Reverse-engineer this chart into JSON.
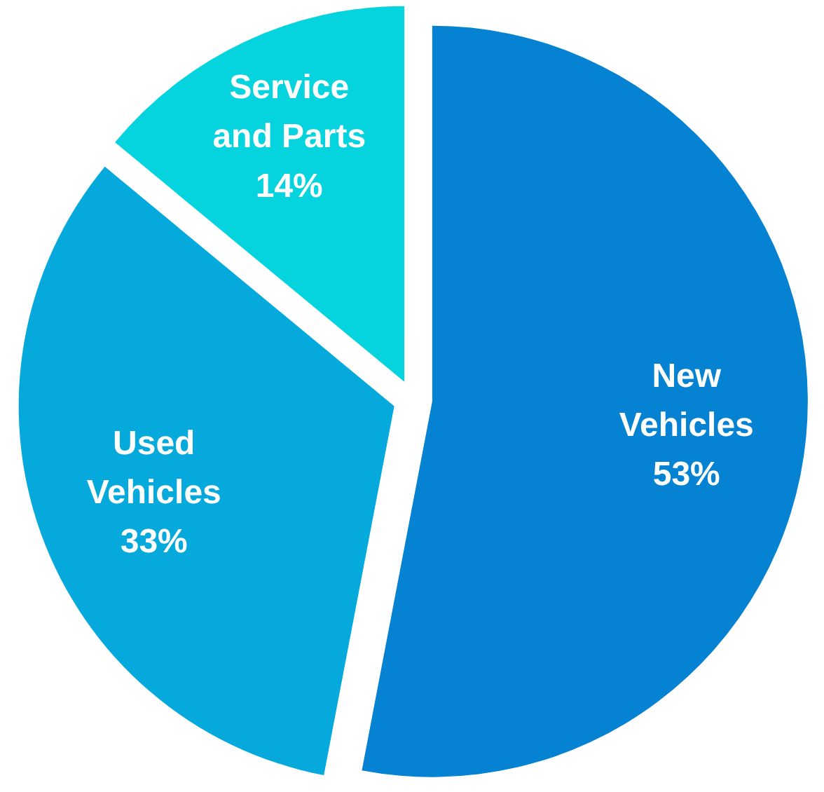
{
  "chart_data": {
    "type": "pie",
    "categories": [
      "New Vehicles",
      "Used Vehicles",
      "Service and Parts"
    ],
    "values": [
      53,
      33,
      14
    ],
    "colors": [
      "#0682d2",
      "#06a9dc",
      "#05d3de"
    ],
    "value_labels": [
      "53%",
      "33%",
      "14%"
    ]
  }
}
